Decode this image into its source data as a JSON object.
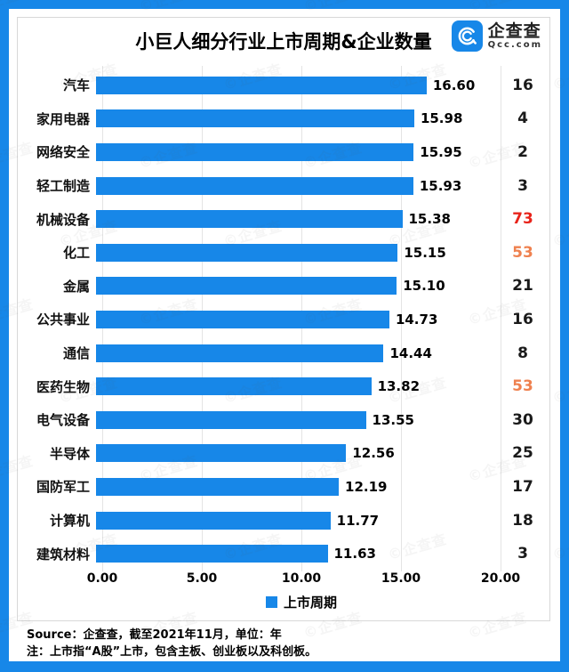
{
  "page": {
    "title": "小巨人细分行业上市周期&企业数量",
    "watermark_text": "©企查查",
    "logo": {
      "name": "企查查",
      "domain": "Qcc.com"
    },
    "notes": [
      "Source：企查查，截至2021年11月，单位：年",
      "注：上市指“A股”上市，包含主板、创业板以及科创板。"
    ],
    "colors": {
      "brand_blue": "#1787e8",
      "black": "#1a1a1a",
      "red": "#e8231a",
      "orange": "#ef814f",
      "gridline": "#e4e4e4"
    }
  },
  "chart_data": {
    "type": "bar",
    "orientation": "horizontal",
    "title": "小巨人细分行业上市周期&企业数量",
    "unit": "年",
    "legend_position": "bottom",
    "grid": true,
    "x_axis": {
      "min": 0,
      "max": 20,
      "ticks": [
        "0.00",
        "5.00",
        "10.00",
        "15.00",
        "20.00"
      ]
    },
    "categories": [
      "汽车",
      "家用电器",
      "网络安全",
      "轻工制造",
      "机械设备",
      "化工",
      "金属",
      "公共事业",
      "通信",
      "医药生物",
      "电气设备",
      "半导体",
      "国防军工",
      "计算机",
      "建筑材料"
    ],
    "series": [
      {
        "name": "上市周期",
        "values": [
          "16.60",
          "15.98",
          "15.95",
          "15.93",
          "15.38",
          "15.15",
          "15.10",
          "14.73",
          "14.44",
          "13.82",
          "13.55",
          "12.56",
          "12.19",
          "11.77",
          "11.63"
        ]
      }
    ],
    "counts": {
      "values": [
        "16",
        "4",
        "2",
        "3",
        "73",
        "53",
        "21",
        "16",
        "8",
        "53",
        "30",
        "25",
        "17",
        "18",
        "3"
      ],
      "colors": [
        "black",
        "black",
        "black",
        "black",
        "red",
        "orange",
        "black",
        "black",
        "black",
        "orange",
        "black",
        "black",
        "black",
        "black",
        "black"
      ]
    }
  }
}
